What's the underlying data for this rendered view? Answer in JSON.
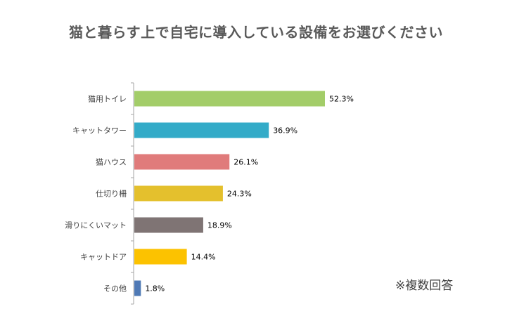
{
  "title": "猫と暮らす上で自宅に導入している設備をお選びください",
  "note": "※複数回答",
  "chart_data": {
    "type": "bar",
    "orientation": "horizontal",
    "categories": [
      "猫用トイレ",
      "キャットタワー",
      "猫ハウス",
      "仕切り柵",
      "滑りにくいマット",
      "キャットドア",
      "その他"
    ],
    "values": [
      52.3,
      36.9,
      26.1,
      24.3,
      18.9,
      14.4,
      1.8
    ],
    "value_labels": [
      "52.3%",
      "36.9%",
      "26.1%",
      "24.3%",
      "18.9%",
      "14.4%",
      "1.8%"
    ],
    "colors": [
      "#a3cd69",
      "#33abc8",
      "#e07b7b",
      "#e4c02d",
      "#7f7474",
      "#fcc200",
      "#4f79b5"
    ],
    "title": "猫と暮らす上で自宅に導入している設備をお選びください",
    "xlabel": "",
    "ylabel": "",
    "grid": false,
    "legend": "none"
  }
}
